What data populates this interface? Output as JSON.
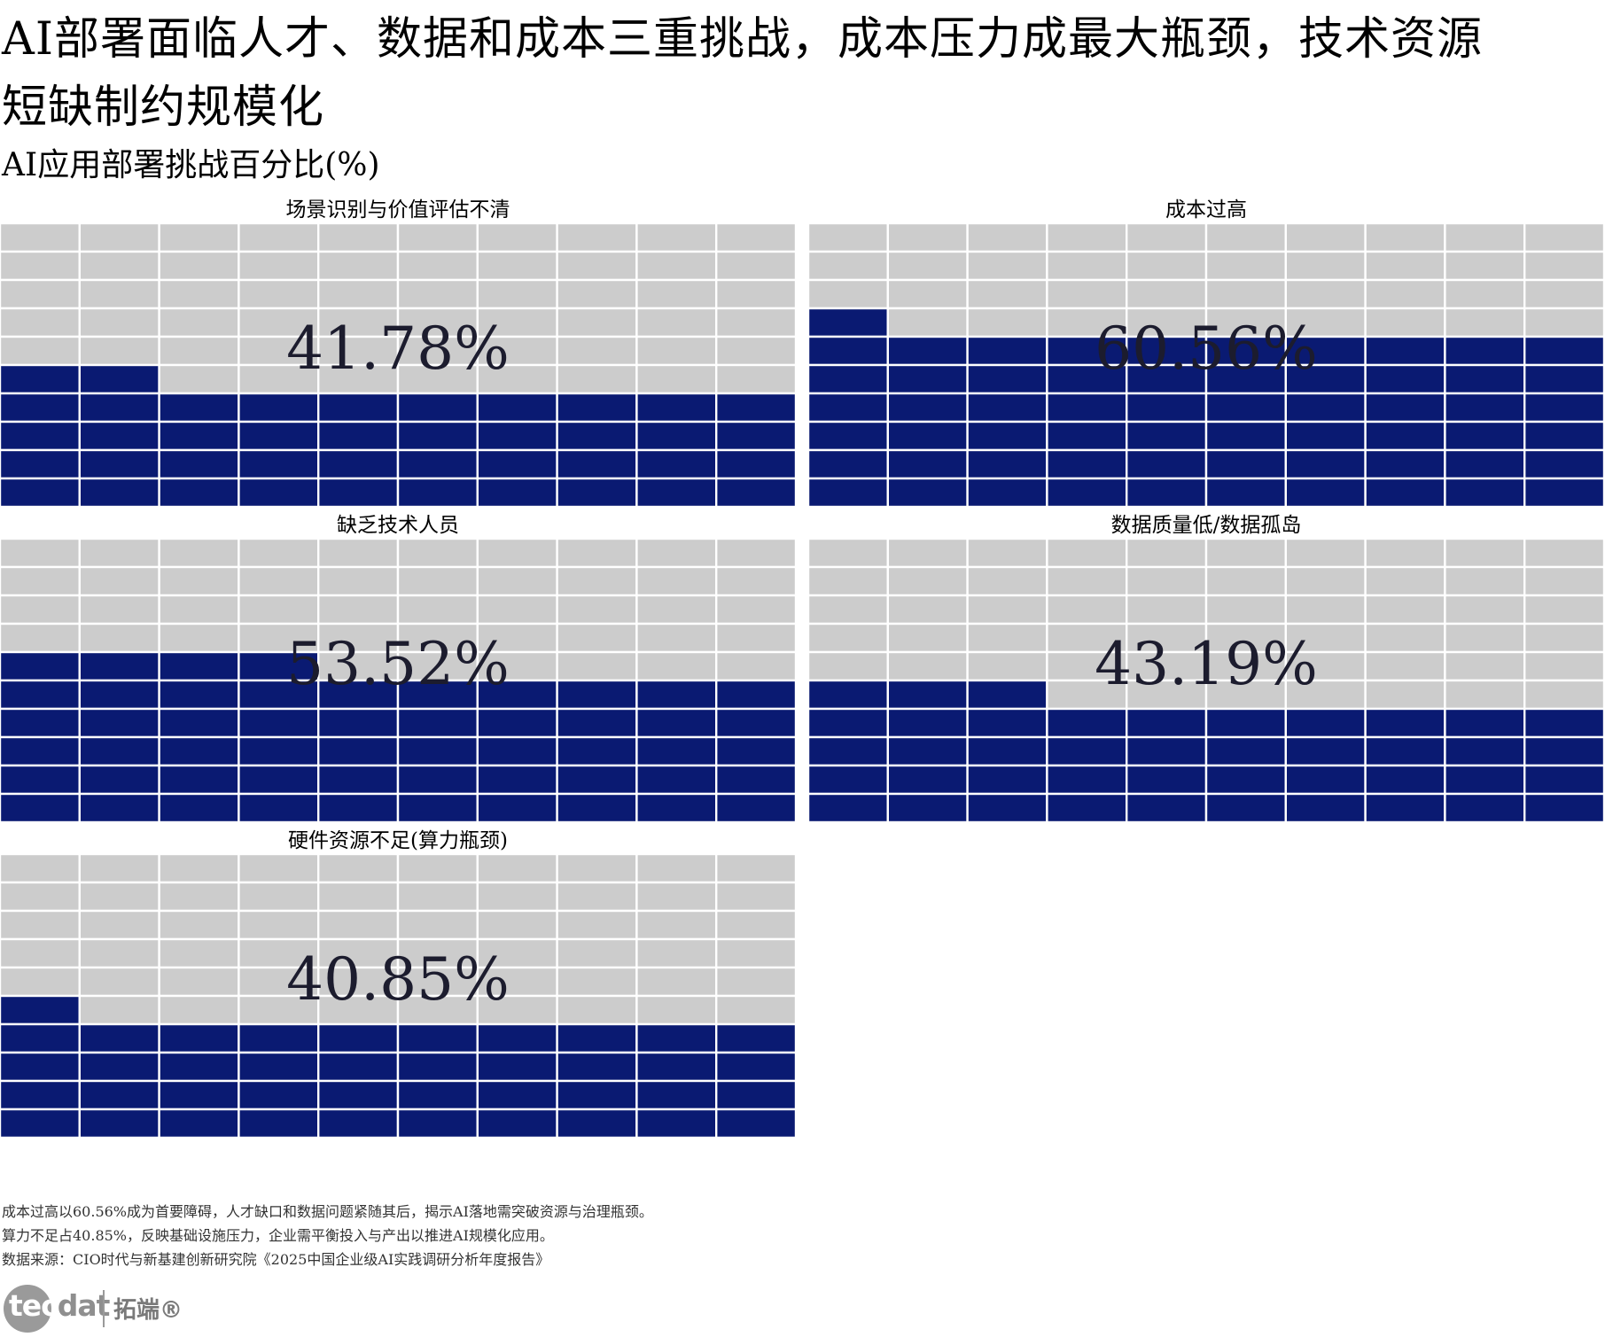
{
  "title": "AI部署面临人才、数据和成本三重挑战，成本压力成最大瓶颈，技术资源短缺制约规模化",
  "subtitle": "AI应用部署挑战百分比(%)",
  "colors": {
    "filled": "#0a1a72",
    "empty": "#cccccc",
    "grid": "#ffffff",
    "label": "#1c1c2e"
  },
  "chart_data": [
    {
      "type": "waffle",
      "category": "场景识别与价值评估不清",
      "value": 41.78,
      "label": "41.78%",
      "grid": [
        10,
        10
      ]
    },
    {
      "type": "waffle",
      "category": "成本过高",
      "value": 60.56,
      "label": "60.56%",
      "grid": [
        10,
        10
      ]
    },
    {
      "type": "waffle",
      "category": "缺乏技术人员",
      "value": 53.52,
      "label": "53.52%",
      "grid": [
        10,
        10
      ]
    },
    {
      "type": "waffle",
      "category": "数据质量低/数据孤岛",
      "value": 43.19,
      "label": "43.19%",
      "grid": [
        10,
        10
      ]
    },
    {
      "type": "waffle",
      "category": "硬件资源不足(算力瓶颈)",
      "value": 40.85,
      "label": "40.85%",
      "grid": [
        10,
        10
      ]
    }
  ],
  "footnote": {
    "line1": "成本过高以60.56%成为首要障碍，人才缺口和数据问题紧随其后，揭示AI落地需突破资源与治理瓶颈。",
    "line2": "算力不足占40.85%，反映基础设施压力，企业需平衡投入与产出以推进AI规模化应用。",
    "line3": "数据来源：CIO时代与新基建创新研究院《2025中国企业级AI实践调研分析年度报告》"
  },
  "logo": {
    "en_part1": "tec",
    "en_part2": "dat",
    "cn": "拓端®"
  }
}
